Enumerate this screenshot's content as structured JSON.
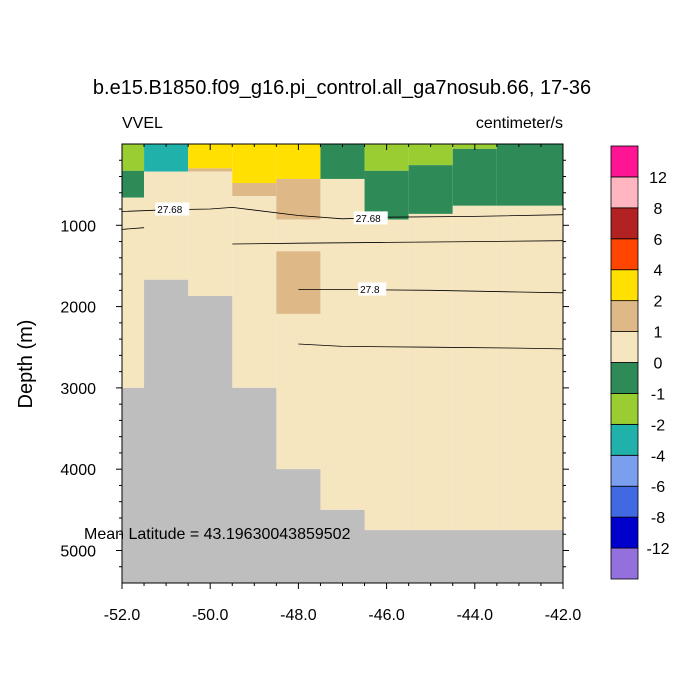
{
  "chart_data": {
    "type": "heatmap",
    "title": "b.e15.B1850.f09_g16.pi_control.all_ga7nosub.66, 17-36",
    "variable": "VVEL",
    "units": "centimeter/s",
    "ylabel": "Depth (m)",
    "xlabel": "",
    "xlim": [
      -52.0,
      -42.0
    ],
    "ylim": [
      5400,
      0
    ],
    "xticks": [
      -52,
      -50,
      -48,
      -46,
      -44,
      -42
    ],
    "xtick_labels": [
      "-52.0",
      "-50.0",
      "-48.0",
      "-46.0",
      "-44.0",
      "-42.0"
    ],
    "yticks": [
      1000,
      2000,
      3000,
      4000,
      5000
    ],
    "ytick_labels": [
      "1000",
      "2000",
      "3000",
      "4000",
      "5000"
    ],
    "annotation": "Mean Latitude = 43.19630043859502",
    "colorbar": {
      "colors": [
        "#9370DB",
        "#0000CD",
        "#4169E1",
        "#7B9FEF",
        "#20B2AA",
        "#9ACD32",
        "#2E8B57",
        "#F5E6C0",
        "#DEB887",
        "#FFE000",
        "#FF4500",
        "#B22222",
        "#FFB6C1",
        "#FF1493"
      ],
      "labels": [
        "-12",
        "-8",
        "-6",
        "-4",
        "-2",
        "-1",
        "0",
        "1",
        "2",
        "4",
        "6",
        "8",
        "12"
      ]
    },
    "grid": {
      "x_edges": [
        -52.0,
        -51.5,
        -50.5,
        -49.5,
        -48.5,
        -47.5,
        -46.5,
        -45.5,
        -44.5,
        -43.5,
        -42.0
      ],
      "cells": [
        {
          "x": [
            -52.0,
            -51.5
          ],
          "depth": [
            0,
            330
          ],
          "value": -1.5
        },
        {
          "x": [
            -52.0,
            -51.5
          ],
          "depth": [
            330,
            660
          ],
          "value": -0.5
        },
        {
          "x": [
            -52.0,
            -51.5
          ],
          "depth": [
            660,
            3000
          ],
          "value": 0.5
        },
        {
          "x": [
            -51.5,
            -50.5
          ],
          "depth": [
            0,
            340
          ],
          "value": -3
        },
        {
          "x": [
            -51.5,
            -50.5
          ],
          "depth": [
            340,
            1670
          ],
          "value": 0.5
        },
        {
          "x": [
            -50.5,
            -49.5
          ],
          "depth": [
            0,
            300
          ],
          "value": 3
        },
        {
          "x": [
            -50.5,
            -49.5
          ],
          "depth": [
            300,
            340
          ],
          "value": 1.5
        },
        {
          "x": [
            -50.5,
            -49.5
          ],
          "depth": [
            340,
            1870
          ],
          "value": 0.5
        },
        {
          "x": [
            -49.5,
            -48.5
          ],
          "depth": [
            0,
            480
          ],
          "value": 3
        },
        {
          "x": [
            -49.5,
            -48.5
          ],
          "depth": [
            480,
            640
          ],
          "value": 1.5
        },
        {
          "x": [
            -49.5,
            -48.5
          ],
          "depth": [
            640,
            3000
          ],
          "value": 0.5
        },
        {
          "x": [
            -48.5,
            -47.5
          ],
          "depth": [
            0,
            430
          ],
          "value": 3
        },
        {
          "x": [
            -48.5,
            -47.5
          ],
          "depth": [
            430,
            930
          ],
          "value": 1.5
        },
        {
          "x": [
            -48.5,
            -47.5
          ],
          "depth": [
            930,
            1320
          ],
          "value": 0.5
        },
        {
          "x": [
            -48.5,
            -47.5
          ],
          "depth": [
            1320,
            2090
          ],
          "value": 1.5
        },
        {
          "x": [
            -48.5,
            -47.5
          ],
          "depth": [
            2090,
            4000
          ],
          "value": 0.5
        },
        {
          "x": [
            -47.5,
            -46.5
          ],
          "depth": [
            0,
            430
          ],
          "value": -0.5
        },
        {
          "x": [
            -47.5,
            -46.5
          ],
          "depth": [
            430,
            4500
          ],
          "value": 0.5
        },
        {
          "x": [
            -46.5,
            -45.5
          ],
          "depth": [
            0,
            330
          ],
          "value": -1.5
        },
        {
          "x": [
            -46.5,
            -45.5
          ],
          "depth": [
            330,
            930
          ],
          "value": -0.5
        },
        {
          "x": [
            -46.5,
            -45.5
          ],
          "depth": [
            930,
            4750
          ],
          "value": 0.5
        },
        {
          "x": [
            -45.5,
            -44.5
          ],
          "depth": [
            0,
            260
          ],
          "value": -1.5
        },
        {
          "x": [
            -45.5,
            -44.5
          ],
          "depth": [
            260,
            860
          ],
          "value": -0.5
        },
        {
          "x": [
            -45.5,
            -44.5
          ],
          "depth": [
            860,
            4750
          ],
          "value": 0.5
        },
        {
          "x": [
            -44.5,
            -43.5
          ],
          "depth": [
            0,
            60
          ],
          "value": -1.5
        },
        {
          "x": [
            -44.5,
            -43.5
          ],
          "depth": [
            60,
            760
          ],
          "value": -0.5
        },
        {
          "x": [
            -44.5,
            -43.5
          ],
          "depth": [
            760,
            4750
          ],
          "value": 0.5
        },
        {
          "x": [
            -43.5,
            -42.0
          ],
          "depth": [
            0,
            760
          ],
          "value": -0.5
        },
        {
          "x": [
            -43.5,
            -42.0
          ],
          "depth": [
            760,
            4750
          ],
          "value": 0.5
        }
      ],
      "bathymetry": [
        {
          "x": [
            -52.0,
            -51.5
          ],
          "depth": 3000
        },
        {
          "x": [
            -51.5,
            -50.5
          ],
          "depth": 1670
        },
        {
          "x": [
            -50.5,
            -49.5
          ],
          "depth": 1870
        },
        {
          "x": [
            -49.5,
            -48.5
          ],
          "depth": 3000
        },
        {
          "x": [
            -48.5,
            -47.5
          ],
          "depth": 4000
        },
        {
          "x": [
            -47.5,
            -46.5
          ],
          "depth": 4500
        },
        {
          "x": [
            -46.5,
            -42.0
          ],
          "depth": 4750
        }
      ],
      "floor_depth": 5400,
      "coast_x": -52.0
    },
    "contours": [
      {
        "label": "27.68",
        "points": [
          [
            -52.0,
            830
          ],
          [
            -51.0,
            810
          ],
          [
            -50.0,
            800
          ],
          [
            -49.5,
            780
          ],
          [
            -48.0,
            880
          ],
          [
            -47.0,
            920
          ],
          [
            -46.0,
            900
          ],
          [
            -44.0,
            890
          ],
          [
            -42.0,
            870
          ]
        ],
        "label_at": [
          -51.2,
          805
        ]
      },
      {
        "label": "27.68",
        "points": [
          [
            -46.5,
            915
          ]
        ],
        "label_at": [
          -46.7,
          915
        ]
      },
      {
        "label": "",
        "points": [
          [
            -52.0,
            1050
          ],
          [
            -51.5,
            1030
          ]
        ],
        "label_at": null
      },
      {
        "label": "",
        "points": [
          [
            -49.5,
            1230
          ],
          [
            -48.0,
            1220
          ],
          [
            -46.0,
            1210
          ],
          [
            -44.0,
            1200
          ],
          [
            -42.0,
            1190
          ]
        ],
        "label_at": null
      },
      {
        "label": "27.8",
        "points": [
          [
            -48.0,
            1790
          ],
          [
            -47.0,
            1790
          ],
          [
            -45.0,
            1800
          ],
          [
            -43.0,
            1820
          ],
          [
            -42.0,
            1830
          ]
        ],
        "label_at": [
          -46.6,
          1790
        ]
      },
      {
        "label": "",
        "points": [
          [
            -48.0,
            2460
          ],
          [
            -47.0,
            2490
          ],
          [
            -45.0,
            2500
          ],
          [
            -43.0,
            2510
          ],
          [
            -42.0,
            2520
          ]
        ],
        "label_at": null
      }
    ]
  }
}
